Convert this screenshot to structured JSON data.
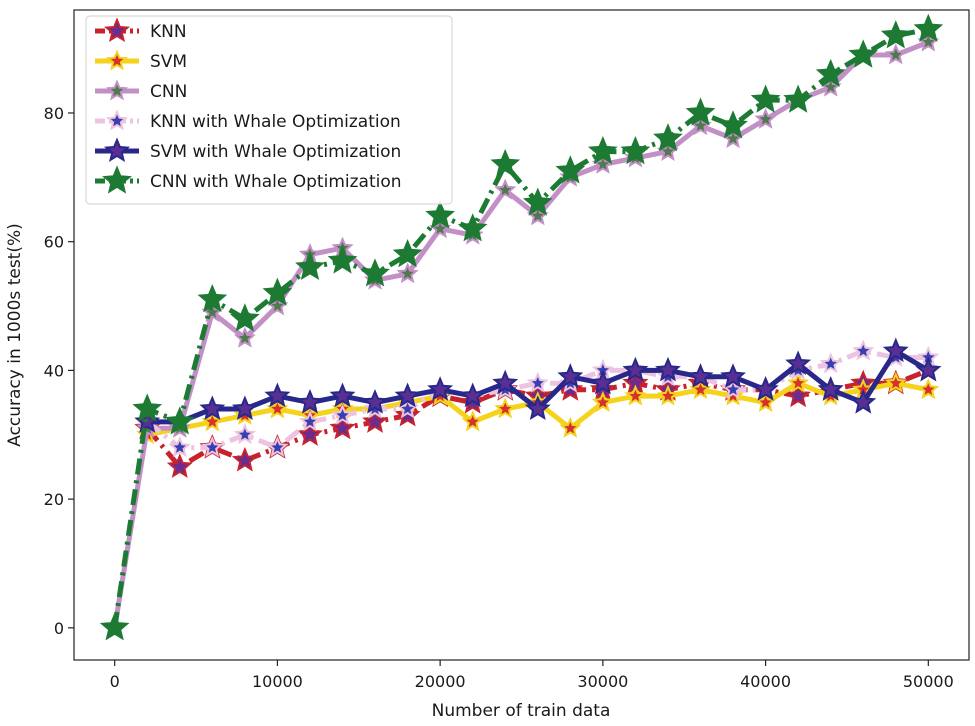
{
  "chart_data": {
    "type": "line",
    "title": "",
    "xlabel": "Number of train data",
    "ylabel": "Accuracy in 1000s test(%)",
    "xlim": [
      -2500,
      52500
    ],
    "ylim": [
      -5,
      96
    ],
    "xticks": [
      0,
      10000,
      20000,
      30000,
      40000,
      50000
    ],
    "yticks": [
      0,
      20,
      40,
      60,
      80
    ],
    "grid": false,
    "legend_position": "top-left",
    "x": [
      0,
      2000,
      4000,
      6000,
      8000,
      10000,
      12000,
      14000,
      16000,
      18000,
      20000,
      22000,
      24000,
      26000,
      28000,
      30000,
      32000,
      34000,
      36000,
      38000,
      40000,
      42000,
      44000,
      46000,
      48000,
      50000
    ],
    "series": [
      {
        "name": "KNN",
        "color": "#c8232c",
        "style": "dashdot",
        "marker_color": "#6a2c91",
        "x": [
          2000,
          4000,
          6000,
          8000,
          10000,
          12000,
          14000,
          16000,
          18000,
          20000,
          22000,
          24000,
          26000,
          28000,
          30000,
          32000,
          34000,
          36000,
          38000,
          40000,
          42000,
          44000,
          46000,
          48000,
          50000
        ],
        "values": [
          31,
          25,
          28,
          26,
          28,
          30,
          31,
          32,
          33,
          36,
          35,
          37,
          36,
          37,
          37,
          38,
          37,
          38,
          37,
          37,
          36,
          37,
          38,
          38,
          40
        ]
      },
      {
        "name": "SVM",
        "color": "#f5d21c",
        "style": "solid",
        "marker_color": "#d6322c",
        "x": [
          2000,
          4000,
          6000,
          8000,
          10000,
          12000,
          14000,
          16000,
          18000,
          20000,
          22000,
          24000,
          26000,
          28000,
          30000,
          32000,
          34000,
          36000,
          38000,
          40000,
          42000,
          44000,
          46000,
          48000,
          50000
        ],
        "values": [
          30,
          31,
          32,
          33,
          34,
          33,
          34,
          34,
          35,
          36,
          32,
          34,
          35,
          31,
          35,
          36,
          36,
          37,
          36,
          35,
          38,
          36,
          37,
          38,
          37
        ]
      },
      {
        "name": "CNN",
        "color": "#c28fc6",
        "style": "solid",
        "marker_color": "#4f7a4f",
        "x": [
          0,
          2000,
          4000,
          6000,
          8000,
          10000,
          12000,
          14000,
          16000,
          18000,
          20000,
          22000,
          24000,
          26000,
          28000,
          30000,
          32000,
          34000,
          36000,
          38000,
          40000,
          42000,
          44000,
          46000,
          48000,
          50000
        ],
        "values": [
          0,
          31,
          31,
          49,
          45,
          50,
          58,
          59,
          54,
          55,
          62,
          61,
          68,
          64,
          70,
          72,
          73,
          74,
          78,
          76,
          79,
          82,
          84,
          89,
          89,
          91
        ]
      },
      {
        "name": "KNN with Whale Optimization",
        "color": "#ecc3e1",
        "style": "dashdot",
        "marker_color": "#3a3fb0",
        "x": [
          2000,
          4000,
          6000,
          8000,
          10000,
          12000,
          14000,
          16000,
          18000,
          20000,
          22000,
          24000,
          26000,
          28000,
          30000,
          32000,
          34000,
          36000,
          38000,
          40000,
          42000,
          44000,
          46000,
          48000,
          50000
        ],
        "values": [
          32,
          28,
          28,
          30,
          28,
          32,
          33,
          34,
          34,
          37,
          36,
          37,
          38,
          38,
          40,
          40,
          39,
          39,
          37,
          37,
          40,
          41,
          43,
          42,
          42
        ]
      },
      {
        "name": "SVM with Whale Optimization",
        "color": "#27288a",
        "style": "solid",
        "marker_color": "#5a2f93",
        "x": [
          2000,
          4000,
          6000,
          8000,
          10000,
          12000,
          14000,
          16000,
          18000,
          20000,
          22000,
          24000,
          26000,
          28000,
          30000,
          32000,
          34000,
          36000,
          38000,
          40000,
          42000,
          44000,
          46000,
          48000,
          50000
        ],
        "values": [
          32,
          32,
          34,
          34,
          36,
          35,
          36,
          35,
          36,
          37,
          36,
          38,
          34,
          39,
          38,
          40,
          40,
          39,
          39,
          37,
          41,
          37,
          35,
          43,
          40
        ]
      },
      {
        "name": "CNN with Whale Optimization",
        "color": "#1d7a33",
        "style": "dashdot",
        "marker_color": "#1d7a33",
        "x": [
          0,
          2000,
          4000,
          6000,
          8000,
          10000,
          12000,
          14000,
          16000,
          18000,
          20000,
          22000,
          24000,
          26000,
          28000,
          30000,
          32000,
          34000,
          36000,
          38000,
          40000,
          42000,
          44000,
          46000,
          48000,
          50000
        ],
        "values": [
          0,
          34,
          32,
          51,
          48,
          52,
          56,
          57,
          55,
          58,
          64,
          62,
          72,
          66,
          71,
          74,
          74,
          76,
          80,
          78,
          82,
          82,
          86,
          89,
          92,
          93
        ]
      }
    ]
  }
}
